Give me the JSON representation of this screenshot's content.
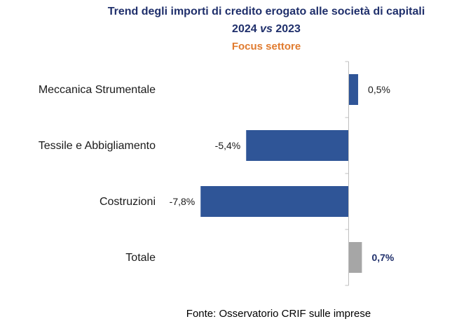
{
  "header": {
    "title_line1": "Trend degli importi di credito erogato alle società di capitali",
    "title_year_a": "2024",
    "title_vs": "vs",
    "title_year_b": "2023",
    "subtitle": "Focus settore"
  },
  "source": "Fonte: Osservatorio CRIF sulle imprese",
  "colors": {
    "sector_bar": "#2f5597",
    "total_bar": "#a6a6a6",
    "title": "#1f2f6b",
    "subtitle": "#e07b2f"
  },
  "chart_data": {
    "type": "bar",
    "orientation": "horizontal",
    "categories": [
      "Meccanica Strumentale",
      "Tessile e Abbigliamento",
      "Costruzioni",
      "Totale"
    ],
    "values": [
      0.5,
      -5.4,
      -7.8,
      0.7
    ],
    "data_labels": [
      "0,5%",
      "-5,4%",
      "-7,8%",
      "0,7%"
    ],
    "unit": "%",
    "xlim": [
      -8.4,
      1.2
    ],
    "grid": false,
    "legend": "none"
  }
}
